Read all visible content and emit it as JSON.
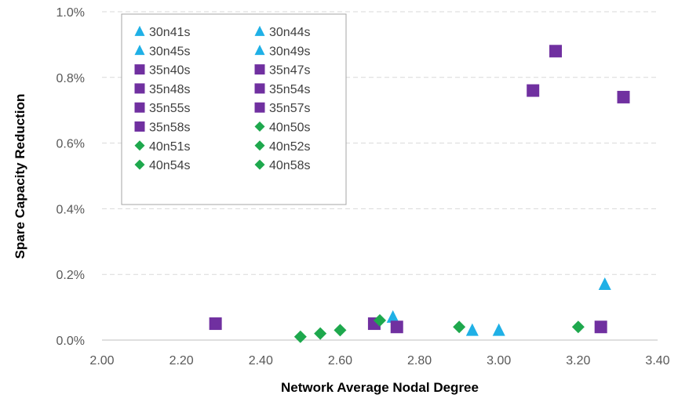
{
  "chart_data": {
    "type": "scatter",
    "xlabel": "Network Average Nodal Degree",
    "ylabel": "Spare Capacity Reduction",
    "xlim": [
      2.0,
      3.4
    ],
    "ylim": [
      0.0,
      0.01
    ],
    "x_ticks": [
      "2.00",
      "2.20",
      "2.40",
      "2.60",
      "2.80",
      "3.00",
      "3.20",
      "3.40"
    ],
    "y_ticks": [
      "0.0%",
      "0.2%",
      "0.4%",
      "0.6%",
      "0.8%",
      "1.0%"
    ],
    "grid": "horizontal dashed",
    "legend_position": "top-left",
    "colors": {
      "triangle": "#1fb0e6",
      "square": "#7030a0",
      "diamond": "#1ea84d"
    },
    "series": [
      {
        "name": "30n41s",
        "marker": "triangle",
        "points": [
          [
            2.733,
            0.0007
          ]
        ]
      },
      {
        "name": "30n44s",
        "marker": "triangle",
        "points": [
          [
            2.933,
            0.0003
          ]
        ]
      },
      {
        "name": "30n45s",
        "marker": "triangle",
        "points": [
          [
            3.0,
            0.0003
          ]
        ]
      },
      {
        "name": "30n49s",
        "marker": "triangle",
        "points": [
          [
            3.267,
            0.0017
          ]
        ]
      },
      {
        "name": "35n40s",
        "marker": "square",
        "points": [
          [
            2.286,
            0.0005
          ]
        ]
      },
      {
        "name": "35n47s",
        "marker": "square",
        "points": [
          [
            2.686,
            0.0005
          ]
        ]
      },
      {
        "name": "35n48s",
        "marker": "square",
        "points": [
          [
            2.743,
            0.0004
          ]
        ]
      },
      {
        "name": "35n54s",
        "marker": "square",
        "points": [
          [
            3.086,
            0.0076
          ]
        ]
      },
      {
        "name": "35n55s",
        "marker": "square",
        "points": [
          [
            3.143,
            0.0088
          ]
        ]
      },
      {
        "name": "35n57s",
        "marker": "square",
        "points": [
          [
            3.257,
            0.0004
          ]
        ]
      },
      {
        "name": "35n58s",
        "marker": "square",
        "points": [
          [
            3.314,
            0.0074
          ]
        ]
      },
      {
        "name": "40n50s",
        "marker": "diamond",
        "points": [
          [
            2.5,
            0.0001
          ]
        ]
      },
      {
        "name": "40n51s",
        "marker": "diamond",
        "points": [
          [
            2.55,
            0.0002
          ]
        ]
      },
      {
        "name": "40n52s",
        "marker": "diamond",
        "points": [
          [
            2.6,
            0.0003
          ]
        ]
      },
      {
        "name": "40n54s",
        "marker": "diamond",
        "points": [
          [
            2.7,
            0.0006
          ]
        ]
      },
      {
        "name": "40n58s",
        "marker": "diamond",
        "points": [
          [
            2.9,
            0.0004
          ],
          [
            3.2,
            0.0004
          ]
        ]
      }
    ]
  }
}
